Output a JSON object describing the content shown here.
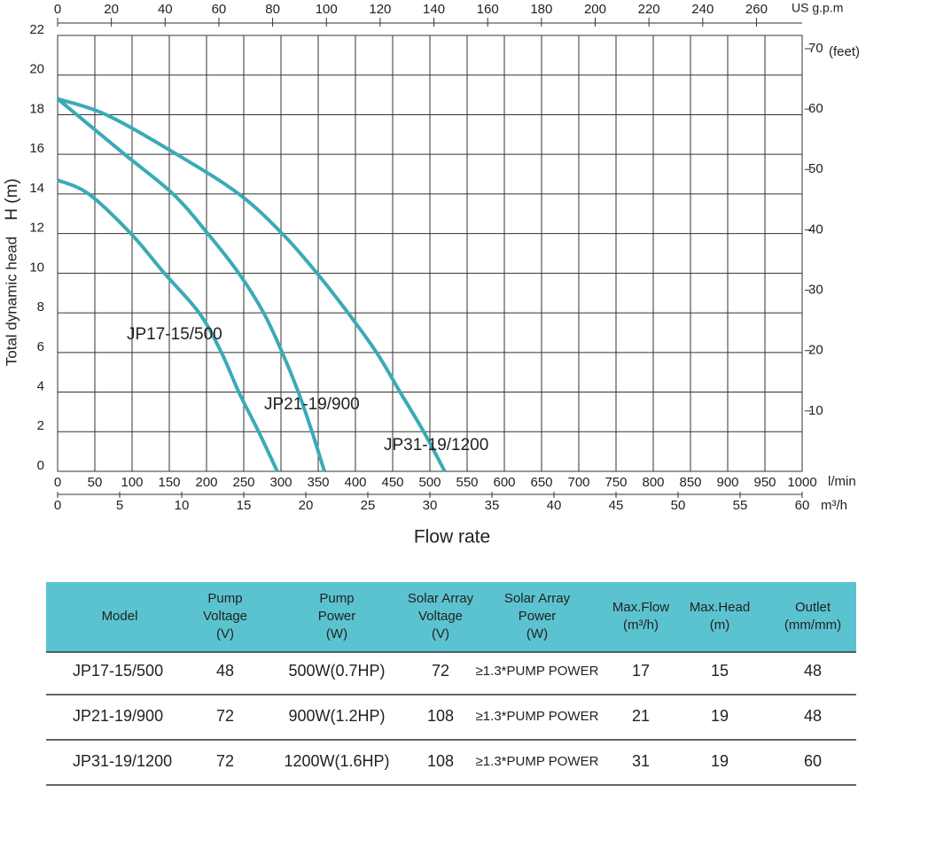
{
  "chart_data": {
    "type": "line",
    "y_label": "Total dynamic head",
    "y_unit": "H (m)",
    "x_label": "Flow rate",
    "x_unit": "m³/h",
    "x2_unit": "l/min",
    "x3_unit": "US g.p.m",
    "y2_unit": "(feet)",
    "xlim": [
      0,
      60
    ],
    "xticks": [
      0,
      5,
      10,
      15,
      20,
      25,
      30,
      35,
      40,
      45,
      50,
      55,
      60
    ],
    "x2lim": [
      0,
      1000
    ],
    "x2ticks": [
      0,
      50,
      100,
      150,
      200,
      250,
      300,
      350,
      400,
      450,
      500,
      550,
      600,
      650,
      700,
      750,
      800,
      850,
      900,
      950,
      1000
    ],
    "x3lim": [
      0,
      277
    ],
    "x3ticks": [
      0,
      20,
      40,
      60,
      80,
      100,
      120,
      140,
      160,
      180,
      200,
      220,
      240,
      260
    ],
    "ylim": [
      0,
      22
    ],
    "yticks": [
      0,
      2,
      4,
      6,
      8,
      10,
      12,
      14,
      16,
      18,
      20,
      22
    ],
    "y2lim": [
      0,
      72.2
    ],
    "y2ticks": [
      10,
      20,
      30,
      40,
      50,
      60,
      70
    ],
    "grid": true,
    "series": [
      {
        "name": "JP17-15/500",
        "color": "#3aabb6",
        "x": [
          0,
          2.5,
          5.9,
          8.6,
          11.4,
          13.2,
          14.6,
          16.2,
          17.7
        ],
        "values": [
          14.7,
          14,
          12,
          10,
          8,
          6,
          4,
          2,
          0
        ]
      },
      {
        "name": "JP21-19/900",
        "color": "#3aabb6",
        "x": [
          0,
          5.4,
          9.3,
          12.1,
          14.6,
          16.6,
          18.1,
          19.4,
          20.5,
          21.5
        ],
        "values": [
          18.8,
          16,
          14,
          12,
          10,
          8,
          6,
          4,
          2,
          0
        ]
      },
      {
        "name": "JP31-19/1200",
        "color": "#3aabb6",
        "x": [
          0,
          3.9,
          9.6,
          14.6,
          18.1,
          20.9,
          23.4,
          25.7,
          27.6,
          29.5,
          31.2
        ],
        "values": [
          18.8,
          18,
          16,
          14,
          12,
          10,
          8,
          6,
          4,
          2,
          0
        ]
      }
    ]
  },
  "table": {
    "header": [
      [
        "Model"
      ],
      [
        "Pump",
        "Voltage",
        "(V)"
      ],
      [
        "Pump",
        "Power",
        "(W)"
      ],
      [
        "Solar Array",
        "Voltage",
        "(V)"
      ],
      [
        "Solar Array",
        "Power",
        "(W)"
      ],
      [
        "Max.Flow",
        "(m³/h)"
      ],
      [
        "Max.Head",
        "(m)"
      ],
      [
        "Outlet",
        "(mm/mm)"
      ]
    ],
    "rows": [
      [
        "JP17-15/500",
        "48",
        "500W(0.7HP)",
        "72",
        "≥1.3*PUMP POWER",
        "17",
        "15",
        "48"
      ],
      [
        "JP21-19/900",
        "72",
        "900W(1.2HP)",
        "108",
        "≥1.3*PUMP POWER",
        "21",
        "19",
        "48"
      ],
      [
        "JP31-19/1200",
        "72",
        "1200W(1.6HP)",
        "108",
        "≥1.3*PUMP POWER",
        "31",
        "19",
        "60"
      ]
    ]
  }
}
